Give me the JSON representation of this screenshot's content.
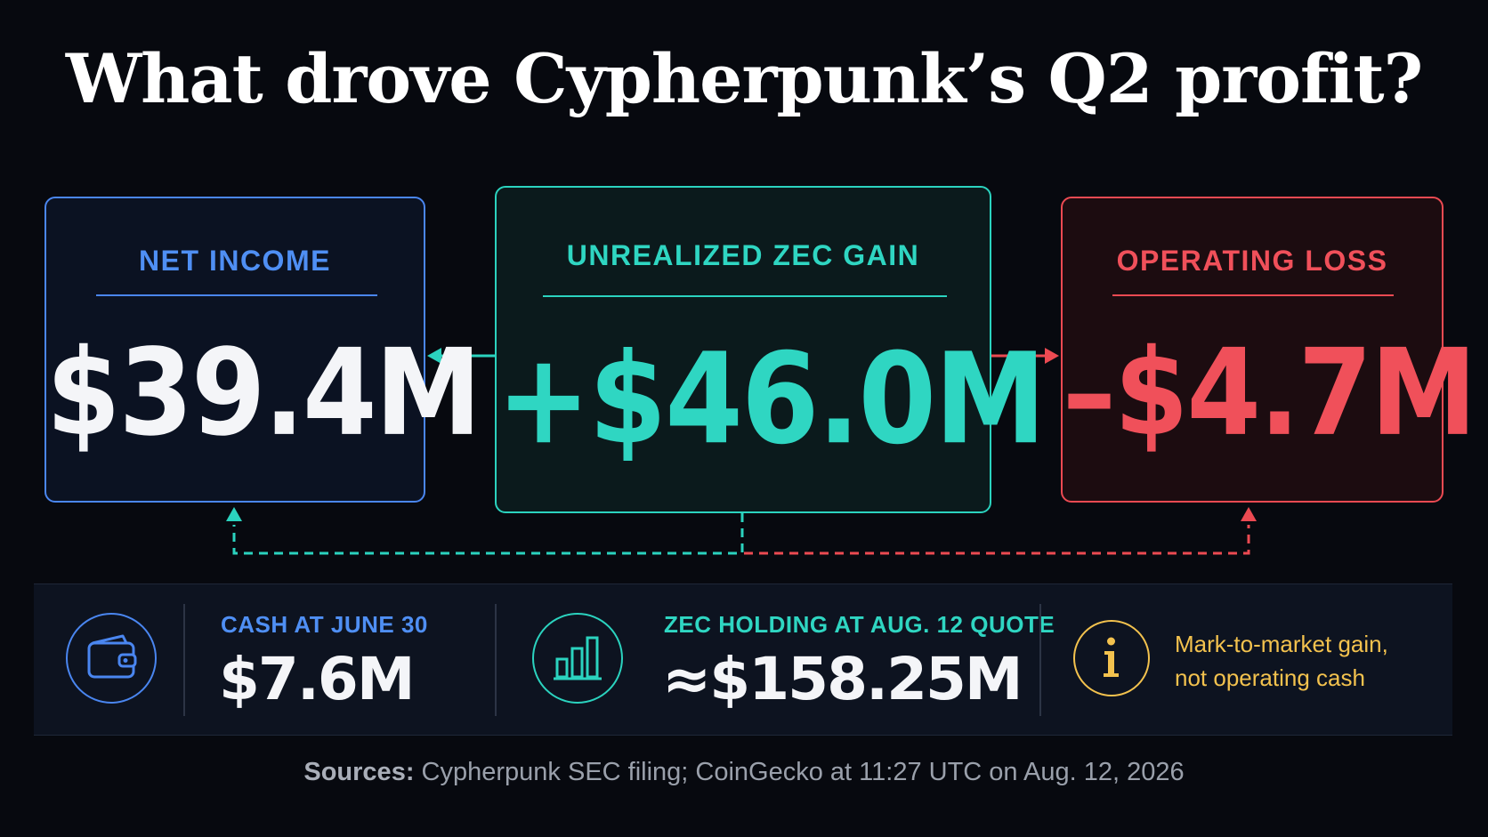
{
  "title": "What drove Cypherpunk’s Q2 profit?",
  "cards": {
    "net_income": {
      "label": "NET INCOME",
      "value": "$39.4M",
      "color": "#4a86f0"
    },
    "zec_gain": {
      "label": "UNREALIZED ZEC GAIN",
      "value": "+$46.0M",
      "color": "#2bd3bf"
    },
    "operating_loss": {
      "label": "OPERATING LOSS",
      "value": "–$4.7M",
      "color": "#ec4a52"
    }
  },
  "stats": {
    "cash": {
      "icon": "wallet-icon",
      "label": "CASH AT JUNE 30",
      "value": "$7.6M",
      "color": "#4a86f0"
    },
    "zec_holding": {
      "icon": "bar-chart-icon",
      "label": "ZEC HOLDING AT AUG. 12 QUOTE",
      "value": "≈$158.25M",
      "color": "#2bd3bf"
    },
    "note": {
      "icon": "info-icon",
      "line1": "Mark-to-market gain,",
      "line2": "not operating cash",
      "color": "#f3c24e"
    }
  },
  "sources": {
    "label": "Sources:",
    "text": "Cypherpunk SEC filing; CoinGecko at 11:27 UTC on Aug. 12, 2026"
  }
}
